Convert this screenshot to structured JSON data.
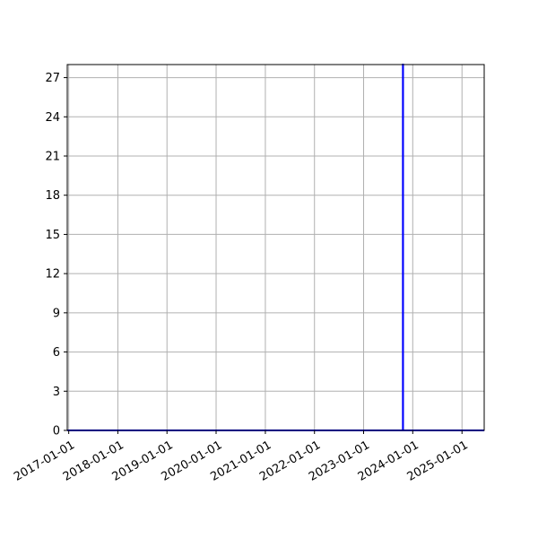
{
  "chart_data": {
    "type": "line",
    "title": "",
    "xlabel": "",
    "ylabel": "",
    "x_axis_type": "date",
    "xlim": [
      "2016-12-21",
      "2025-06-15"
    ],
    "ylim": [
      0,
      28
    ],
    "x_ticks": [
      "2017-01-01",
      "2018-01-01",
      "2019-01-01",
      "2020-01-01",
      "2021-01-01",
      "2022-01-01",
      "2023-01-01",
      "2024-01-01",
      "2025-01-01"
    ],
    "y_ticks": [
      0,
      3,
      6,
      9,
      12,
      15,
      18,
      21,
      24,
      27
    ],
    "grid": true,
    "series": [
      {
        "color": "#0000ff",
        "points": [
          {
            "x": "2016-12-21",
            "y": 0
          },
          {
            "x": "2023-10-20",
            "y": 0
          },
          {
            "x": "2023-10-20",
            "y": 28
          },
          {
            "x": "2023-10-21",
            "y": 28
          },
          {
            "x": "2023-10-21",
            "y": 0
          },
          {
            "x": "2025-06-15",
            "y": 0
          }
        ]
      }
    ]
  }
}
